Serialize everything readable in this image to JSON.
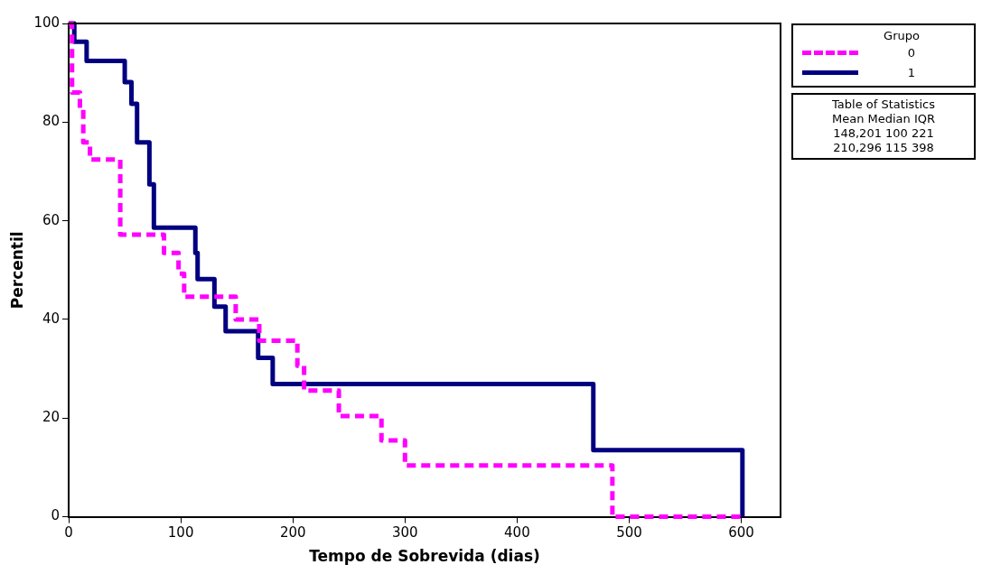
{
  "chart_data": {
    "type": "step",
    "xlabel": "Tempo de Sobrevida (dias)",
    "ylabel": "Percentil",
    "legend_title": "Grupo",
    "legend": "top right",
    "grid": false,
    "xlim": [
      0,
      635
    ],
    "xticks": [
      0,
      100,
      200,
      300,
      400,
      500,
      600
    ],
    "ylim": [
      0,
      100
    ],
    "yticks": [
      0,
      20,
      40,
      60,
      80,
      100
    ],
    "series": [
      {
        "name": "0",
        "color": "#ff00ff",
        "line_style": "dashed",
        "x": [
          0,
          3,
          10,
          13,
          19,
          46,
          85,
          98,
          103,
          149,
          170,
          204,
          210,
          241,
          279,
          300,
          485,
          600
        ],
        "values": [
          100,
          86,
          82.8,
          75.9,
          72.4,
          57.2,
          53.5,
          49.3,
          44.6,
          40,
          35.7,
          30.6,
          25.6,
          20.4,
          15.5,
          10.4,
          0,
          0
        ]
      },
      {
        "name": "1",
        "color": "#000080",
        "line_style": "solid",
        "x": [
          0,
          5,
          16,
          50,
          56,
          61,
          72,
          76,
          113,
          115,
          130,
          140,
          169,
          182,
          468,
          601
        ],
        "values": [
          100,
          96.3,
          92.4,
          88.1,
          83.7,
          75.9,
          67.4,
          58.6,
          53.5,
          48.2,
          42.6,
          37.6,
          32.2,
          26.9,
          13.5,
          0
        ]
      }
    ],
    "annotations": [
      "Table of Statistics",
      "Mean Median IQR",
      "148,201 100 221",
      "210,296 115 398"
    ]
  }
}
